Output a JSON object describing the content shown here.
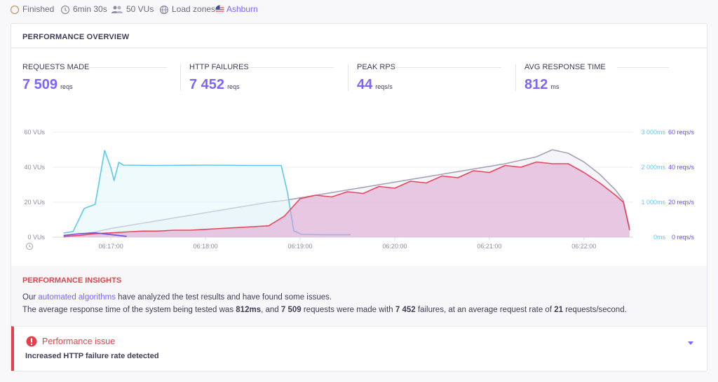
{
  "status": {
    "state": "Finished",
    "duration": "6min 30s",
    "vus": "50 VUs",
    "zones_label": "Load zones:",
    "zone": "Ashburn"
  },
  "overview": {
    "title": "PERFORMANCE OVERVIEW",
    "metrics": [
      {
        "label": "REQUESTS MADE",
        "value": "7 509",
        "unit": "reqs"
      },
      {
        "label": "HTTP FAILURES",
        "value": "7 452",
        "unit": "reqs"
      },
      {
        "label": "PEAK RPS",
        "value": "44",
        "unit": "reqs/s"
      },
      {
        "label": "AVG RESPONSE TIME",
        "value": "812",
        "unit": "ms"
      }
    ]
  },
  "chart_data": {
    "type": "line",
    "xlim": [
      "06:16:23",
      "06:22:29"
    ],
    "xticks": [
      "06:17:00",
      "06:18:00",
      "06:19:00",
      "06:20:00",
      "06:21:00",
      "06:22:00"
    ],
    "ylim": [
      0,
      60
    ],
    "yticks": [
      {
        "value": 0,
        "label": "0 VUs"
      },
      {
        "value": 20,
        "label": "20 VUs"
      },
      {
        "value": 40,
        "label": "40 VUs"
      },
      {
        "value": 60,
        "label": "60 VUs"
      }
    ],
    "y2lim": [
      0,
      3000
    ],
    "y2ticks": [
      {
        "value": 0,
        "label": "0ms"
      },
      {
        "value": 1000,
        "label": "1 000ms"
      },
      {
        "value": 2000,
        "label": "2 000ms"
      },
      {
        "value": 3000,
        "label": "3 000ms"
      }
    ],
    "y3lim": [
      0,
      60
    ],
    "y3ticks": [
      {
        "value": 0,
        "label": "0 reqs/s"
      },
      {
        "value": 20,
        "label": "20 reqs/s"
      },
      {
        "value": 40,
        "label": "40 reqs/s"
      },
      {
        "value": 60,
        "label": "60 reqs/s"
      }
    ],
    "grid": true,
    "series": [
      {
        "color": "#a3a3b8",
        "fill": "#ececf4",
        "axis": "y",
        "x": [
          "06:16:30",
          "06:16:40",
          "06:16:50",
          "06:17:00",
          "06:17:10",
          "06:17:20",
          "06:17:30",
          "06:17:40",
          "06:17:50",
          "06:18:00",
          "06:18:10",
          "06:18:20",
          "06:18:30",
          "06:18:40",
          "06:18:50",
          "06:19:00",
          "06:19:10",
          "06:19:20",
          "06:19:30",
          "06:19:40",
          "06:19:50",
          "06:20:00",
          "06:20:10",
          "06:20:20",
          "06:20:30",
          "06:20:40",
          "06:20:50",
          "06:21:00",
          "06:21:10",
          "06:21:20",
          "06:21:30",
          "06:21:40",
          "06:21:50",
          "06:22:00",
          "06:22:10",
          "06:22:20",
          "06:22:25",
          "06:22:29"
        ],
        "values": [
          0,
          1.5,
          3,
          5,
          6.5,
          8,
          9.5,
          11,
          12.5,
          14,
          15.5,
          17,
          18.5,
          20,
          21,
          22.5,
          24,
          25.5,
          27,
          28.5,
          30,
          31.5,
          33,
          34.5,
          36,
          37.5,
          39,
          40.5,
          42,
          44,
          46,
          50,
          48,
          43,
          36,
          27,
          21,
          5
        ]
      },
      {
        "color": "#5ec8ec",
        "fill": "#e2f5fc",
        "axis": "y2",
        "x": [
          "06:16:30",
          "06:16:36",
          "06:16:43",
          "06:16:50",
          "06:16:56",
          "06:17:00",
          "06:17:02",
          "06:17:05",
          "06:17:08",
          "06:17:30",
          "06:18:00",
          "06:18:30",
          "06:18:48",
          "06:18:52",
          "06:18:56",
          "06:19:01",
          "06:19:15",
          "06:19:32"
        ],
        "values": [
          120,
          160,
          820,
          940,
          2480,
          1980,
          1620,
          2140,
          2060,
          2050,
          2060,
          2050,
          2050,
          1280,
          180,
          80,
          70,
          70
        ]
      },
      {
        "color": "#e8475b",
        "fill": "#dca0cf",
        "axis": "y3",
        "x": [
          "06:16:30",
          "06:16:40",
          "06:16:50",
          "06:17:00",
          "06:17:10",
          "06:17:20",
          "06:17:30",
          "06:17:40",
          "06:17:50",
          "06:18:00",
          "06:18:10",
          "06:18:20",
          "06:18:30",
          "06:18:40",
          "06:18:50",
          "06:19:00",
          "06:19:10",
          "06:19:20",
          "06:19:30",
          "06:19:40",
          "06:19:50",
          "06:20:00",
          "06:20:10",
          "06:20:20",
          "06:20:30",
          "06:20:40",
          "06:20:50",
          "06:21:00",
          "06:21:10",
          "06:21:20",
          "06:21:30",
          "06:21:40",
          "06:21:50",
          "06:22:00",
          "06:22:10",
          "06:22:20",
          "06:22:25",
          "06:22:29"
        ],
        "values": [
          0.5,
          1,
          2,
          2.5,
          3,
          3.5,
          3.5,
          4,
          4,
          4.5,
          5,
          5.5,
          6,
          6.5,
          12,
          22,
          24,
          23,
          26,
          25,
          29,
          28,
          32,
          31,
          35,
          34,
          38,
          37,
          41,
          40,
          43,
          42,
          42,
          37,
          31,
          24,
          20,
          4
        ]
      },
      {
        "color": "#6a4fe0",
        "axis": "y3",
        "x": [
          "06:16:30",
          "06:16:40",
          "06:16:50",
          "06:17:00",
          "06:17:10"
        ],
        "values": [
          1,
          2,
          2.5,
          1.5,
          0.5
        ]
      }
    ]
  },
  "insights": {
    "title": "PERFORMANCE INSIGHTS",
    "line1": [
      {
        "text": "Our "
      },
      {
        "text": "automated algorithms",
        "link": true
      },
      {
        "text": " have analyzed the test results and have found some issues."
      }
    ],
    "line2": [
      {
        "text": "The average response time of the system being tested was "
      },
      {
        "text": "812ms",
        "bold": true
      },
      {
        "text": ", and "
      },
      {
        "text": "7 509",
        "bold": true
      },
      {
        "text": " requests were made with "
      },
      {
        "text": "7 452",
        "bold": true
      },
      {
        "text": " failures, at an average request rate of "
      },
      {
        "text": "21",
        "bold": true
      },
      {
        "text": " requests/second."
      }
    ]
  },
  "issue": {
    "title": "Performance issue",
    "detail": "Increased HTTP failure rate detected"
  }
}
